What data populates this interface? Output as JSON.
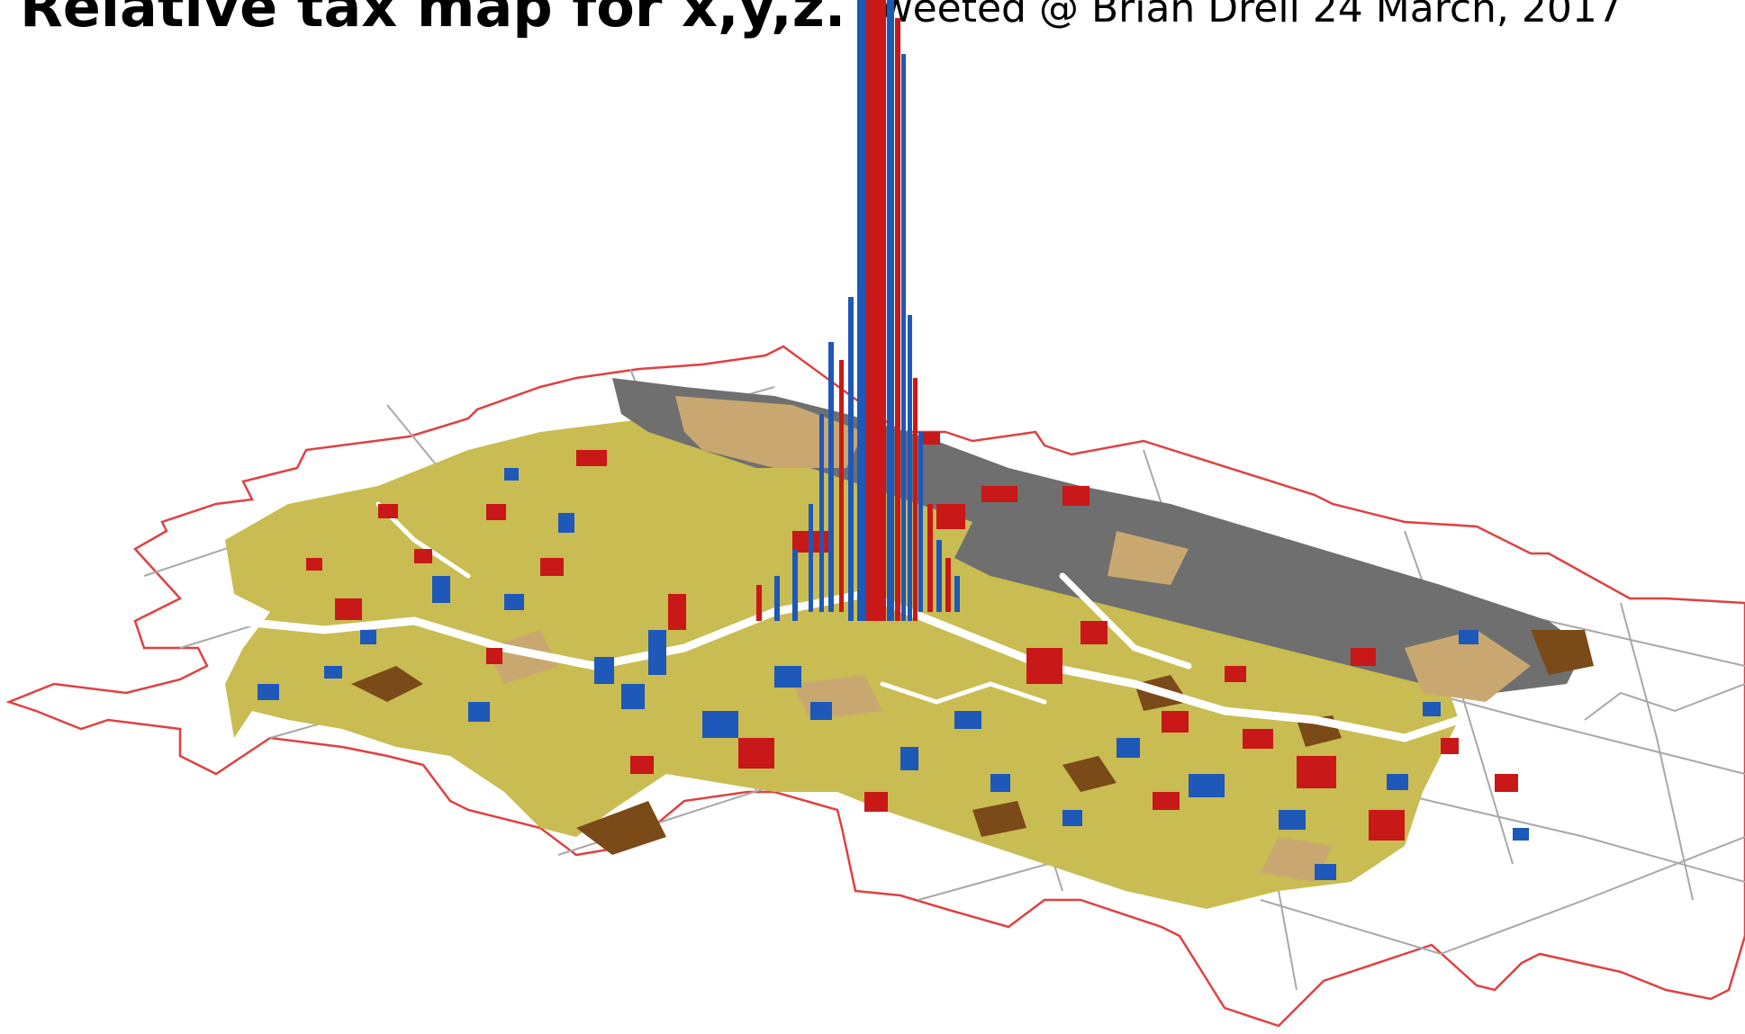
{
  "header": {
    "title": "Relative tax map for x,y,z.",
    "subtitle": "Tweeted @ Brian Drell 24 March, 2017"
  },
  "map": {
    "type": "3D relative tax spike map",
    "colors": {
      "boundary": "#e04040",
      "roads": "#a8a8a8",
      "land_residential": "#c9bc52",
      "land_industrial": "#6f6f6f",
      "land_tan": "#c8a870",
      "land_brown": "#7a4a18",
      "spike_red": "#c81818",
      "spike_blue": "#1e58b8",
      "water": "#ffffff"
    }
  }
}
